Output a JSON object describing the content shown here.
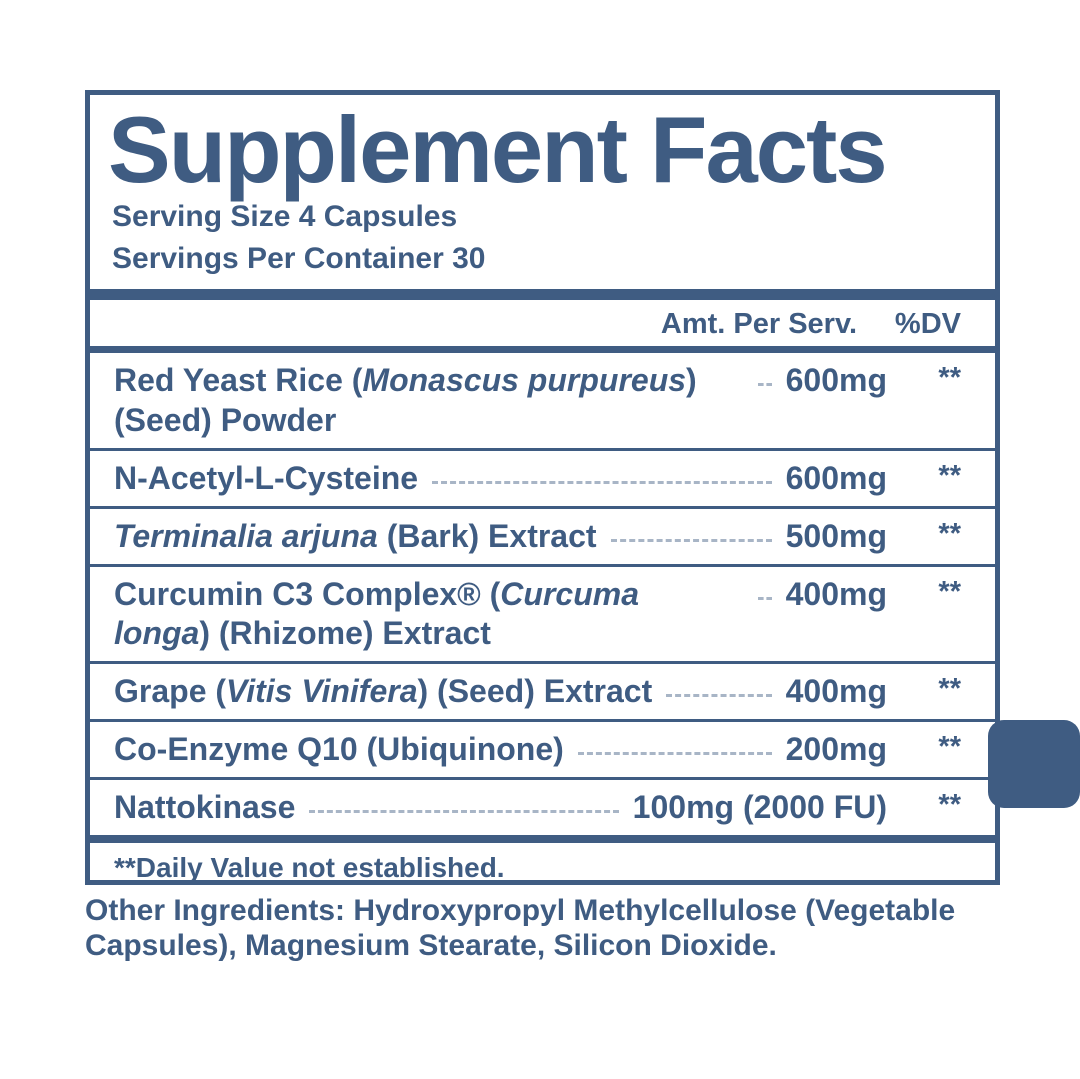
{
  "title": "Supplement Facts",
  "serving_size": "Serving Size 4 Capsules",
  "servings_per_container": "Servings Per Container 30",
  "columns": {
    "amount": "Amt. Per Serv.",
    "dv": "%DV"
  },
  "rows": [
    {
      "parts": [
        {
          "t": "Red Yeast Rice ("
        },
        {
          "t": "Monascus purpureus",
          "i": true
        },
        {
          "t": ") (Seed) Powder"
        }
      ],
      "amount": "600mg",
      "dv": "**"
    },
    {
      "parts": [
        {
          "t": "N-Acetyl-L-Cysteine"
        }
      ],
      "amount": "600mg",
      "dv": "**"
    },
    {
      "parts": [
        {
          "t": "Terminalia arjuna",
          "i": true
        },
        {
          "t": " (Bark) Extract"
        }
      ],
      "amount": "500mg",
      "dv": "**"
    },
    {
      "parts": [
        {
          "t": "Curcumin C3 Complex® ("
        },
        {
          "t": "Curcuma longa",
          "i": true
        },
        {
          "t": ") (Rhizome) Extract"
        }
      ],
      "amount": "400mg",
      "dv": "**"
    },
    {
      "parts": [
        {
          "t": "Grape ("
        },
        {
          "t": "Vitis Vinifera",
          "i": true
        },
        {
          "t": ") (Seed) Extract"
        }
      ],
      "amount": "400mg",
      "dv": "**"
    },
    {
      "parts": [
        {
          "t": "Co-Enzyme Q10 (Ubiquinone)"
        }
      ],
      "amount": "200mg",
      "dv": "**"
    },
    {
      "parts": [
        {
          "t": "Nattokinase"
        }
      ],
      "amount": "100mg (2000 FU)",
      "dv": "**"
    }
  ],
  "footnote": "**Daily Value not established.",
  "other_ingredients": "Other Ingredients: Hydroxypropyl Methylcellulose (Vegetable Capsules), Magnesium Stearate, Silicon Dioxide.",
  "colors": {
    "accent": "#3F5C82"
  }
}
